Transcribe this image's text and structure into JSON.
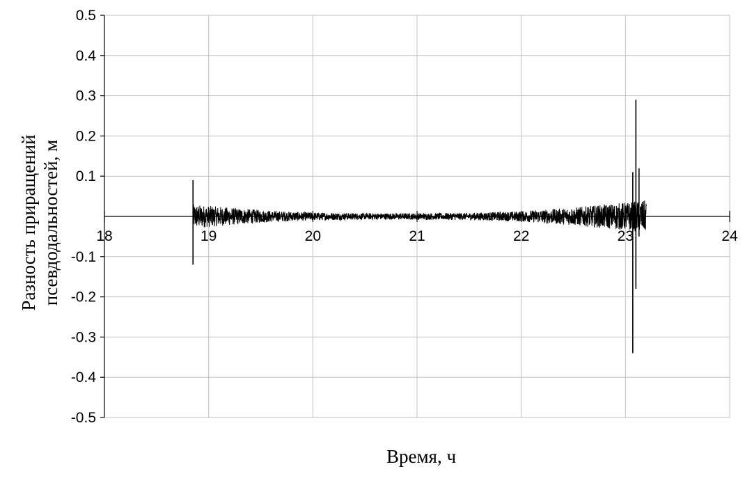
{
  "chart_data": {
    "type": "line",
    "title": "",
    "xlabel": "Время, ч",
    "ylabel_lines": [
      "Разность приращений",
      "псевдодальностей, м"
    ],
    "xlim": [
      18,
      24
    ],
    "ylim": [
      -0.5,
      0.5
    ],
    "x_ticks": [
      18,
      19,
      20,
      21,
      22,
      23,
      24
    ],
    "y_ticks": [
      0.5,
      0.4,
      0.3,
      0.2,
      0.1,
      -0.1,
      -0.2,
      -0.3,
      -0.4,
      -0.5
    ],
    "x_tick_labels": [
      "18",
      "19",
      "20",
      "21",
      "22",
      "23",
      "24"
    ],
    "y_tick_labels": [
      "0.5",
      "0.4",
      "0.3",
      "0.2",
      "0.1",
      "-0.1",
      "-0.2",
      "-0.3",
      "-0.4",
      "-0.5"
    ],
    "grid": true,
    "series": [
      {
        "color": "#000000",
        "data_start": 18.85,
        "data_end": 23.2,
        "noise_envelope": [
          {
            "x": 18.85,
            "amp": 0.03
          },
          {
            "x": 19.2,
            "amp": 0.022
          },
          {
            "x": 19.6,
            "amp": 0.014
          },
          {
            "x": 20.0,
            "amp": 0.01
          },
          {
            "x": 20.5,
            "amp": 0.008
          },
          {
            "x": 21.0,
            "amp": 0.008
          },
          {
            "x": 21.5,
            "amp": 0.009
          },
          {
            "x": 22.0,
            "amp": 0.013
          },
          {
            "x": 22.5,
            "amp": 0.022
          },
          {
            "x": 22.8,
            "amp": 0.03
          },
          {
            "x": 23.0,
            "amp": 0.035
          },
          {
            "x": 23.2,
            "amp": 0.04
          }
        ],
        "spikes": [
          {
            "x": 18.85,
            "max": 0.09,
            "min": -0.12
          },
          {
            "x": 23.07,
            "max": 0.11,
            "min": -0.34
          },
          {
            "x": 23.1,
            "max": 0.29,
            "min": -0.18
          },
          {
            "x": 23.13,
            "max": 0.12,
            "min": -0.05
          }
        ]
      }
    ]
  }
}
